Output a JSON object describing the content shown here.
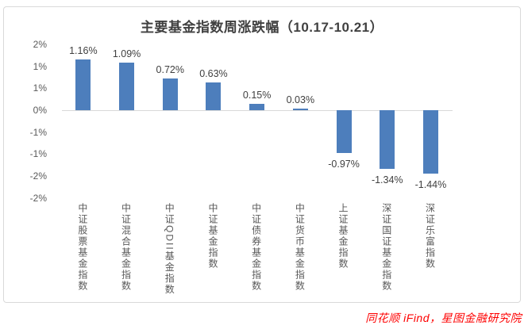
{
  "source": "同花顺 iFind，星图金融研究院",
  "chart_data": {
    "type": "bar",
    "title": "主要基金指数周涨跌幅（10.17-10.21）",
    "categories": [
      "中证股票基金指数",
      "中证混合基金指数",
      "中证QDII基金指数",
      "中证基金指数",
      "中证债券基金指数",
      "中证货币基金指数",
      "上证基金指数",
      "深证国证基金指数",
      "深证乐富指数"
    ],
    "values": [
      1.16,
      1.09,
      0.72,
      0.63,
      0.15,
      0.03,
      -0.97,
      -1.34,
      -1.44
    ],
    "value_labels": [
      "1.16%",
      "1.09%",
      "0.72%",
      "0.63%",
      "0.15%",
      "0.03%",
      "-0.97%",
      "-1.34%",
      "-1.44%"
    ],
    "y_tick_values": [
      1.5,
      1.0,
      0.5,
      0.0,
      -0.5,
      -1.0,
      -1.5,
      -2.0
    ],
    "y_tick_labels": [
      "2%",
      "1%",
      "1%",
      "0%",
      "-1%",
      "-1%",
      "-2%",
      "-2%"
    ],
    "ylim": [
      -2.0,
      1.5
    ],
    "xlabel": "",
    "ylabel": "",
    "grid": false,
    "legend": null,
    "bar_color": "#4d7ebc",
    "source_color": "#fe0000"
  }
}
